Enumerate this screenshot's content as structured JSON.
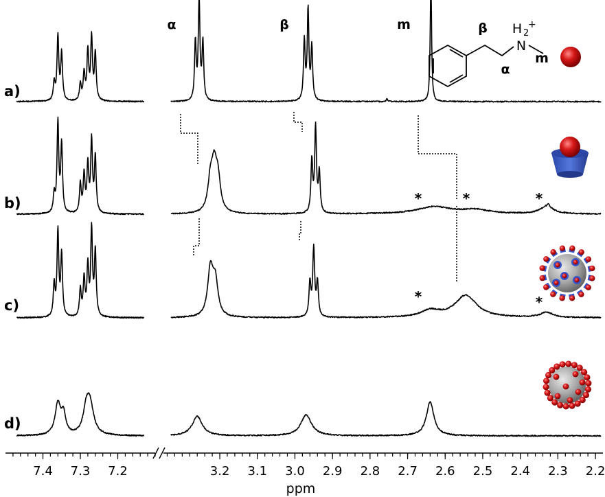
{
  "chart_data": {
    "type": "line",
    "title": "",
    "xlabel": "ppm",
    "ylabel": "",
    "x_axis_reversed": true,
    "x_axis_segments": [
      {
        "from": 7.5,
        "to": 7.1
      },
      {
        "from": 3.35,
        "to": 2.18
      }
    ],
    "x_ticks": [
      "7.4",
      "7.3",
      "7.2",
      "3.2",
      "3.1",
      "3.0",
      "2.9",
      "2.8",
      "2.7",
      "2.6",
      "2.5",
      "2.4",
      "2.3",
      "2.2"
    ],
    "peak_labels": [
      {
        "label": "α",
        "ppm": 3.25
      },
      {
        "label": "β",
        "ppm": 2.97
      },
      {
        "label": "m",
        "ppm": 2.64
      }
    ],
    "annotation_marker": "*",
    "series": [
      {
        "label": "a)",
        "peaks": [
          {
            "ppm": 7.37,
            "height": 0.28,
            "width": 0.0028
          },
          {
            "ppm": 7.36,
            "height": 0.98,
            "width": 0.0028
          },
          {
            "ppm": 7.35,
            "height": 0.72,
            "width": 0.0028
          },
          {
            "ppm": 7.3,
            "height": 0.26,
            "width": 0.0028
          },
          {
            "ppm": 7.29,
            "height": 0.42,
            "width": 0.0028
          },
          {
            "ppm": 7.28,
            "height": 0.75,
            "width": 0.0028
          },
          {
            "ppm": 7.27,
            "height": 0.95,
            "width": 0.0028
          },
          {
            "ppm": 7.26,
            "height": 0.72,
            "width": 0.0028
          },
          {
            "ppm": 3.265,
            "height": 0.9,
            "width": 0.0026
          },
          {
            "ppm": 3.255,
            "height": 1.55,
            "width": 0.0026
          },
          {
            "ppm": 3.245,
            "height": 0.9,
            "width": 0.0026
          },
          {
            "ppm": 2.975,
            "height": 0.92,
            "width": 0.0026
          },
          {
            "ppm": 2.965,
            "height": 1.4,
            "width": 0.0026
          },
          {
            "ppm": 2.955,
            "height": 0.82,
            "width": 0.0026
          },
          {
            "ppm": 2.638,
            "height": 1.85,
            "width": 0.0022
          },
          {
            "ppm": 2.755,
            "height": 0.04,
            "width": 0.002
          }
        ]
      },
      {
        "label": "b)",
        "peaks": [
          {
            "ppm": 7.37,
            "height": 0.28,
            "width": 0.0028
          },
          {
            "ppm": 7.36,
            "height": 1.38,
            "width": 0.0028
          },
          {
            "ppm": 7.35,
            "height": 1.05,
            "width": 0.0028
          },
          {
            "ppm": 7.3,
            "height": 0.45,
            "width": 0.0028
          },
          {
            "ppm": 7.29,
            "height": 0.58,
            "width": 0.0028
          },
          {
            "ppm": 7.28,
            "height": 0.72,
            "width": 0.0028
          },
          {
            "ppm": 7.27,
            "height": 1.1,
            "width": 0.0028
          },
          {
            "ppm": 7.26,
            "height": 0.85,
            "width": 0.0028
          },
          {
            "ppm": 3.225,
            "height": 0.45,
            "width": 0.008
          },
          {
            "ppm": 3.215,
            "height": 0.62,
            "width": 0.008
          },
          {
            "ppm": 3.205,
            "height": 0.48,
            "width": 0.008
          },
          {
            "ppm": 2.955,
            "height": 0.8,
            "width": 0.0028
          },
          {
            "ppm": 2.945,
            "height": 1.3,
            "width": 0.0028
          },
          {
            "ppm": 2.935,
            "height": 0.62,
            "width": 0.0028
          },
          {
            "ppm": 2.63,
            "height": 0.11,
            "width": 0.055
          },
          {
            "ppm": 2.52,
            "height": 0.06,
            "width": 0.045
          },
          {
            "ppm": 2.33,
            "height": 0.11,
            "width": 0.022
          },
          {
            "ppm": 2.325,
            "height": 0.05,
            "width": 0.004
          }
        ]
      },
      {
        "label": "c)",
        "peaks": [
          {
            "ppm": 7.37,
            "height": 0.48,
            "width": 0.0028
          },
          {
            "ppm": 7.36,
            "height": 1.3,
            "width": 0.0028
          },
          {
            "ppm": 7.35,
            "height": 0.95,
            "width": 0.0028
          },
          {
            "ppm": 7.3,
            "height": 0.42,
            "width": 0.0028
          },
          {
            "ppm": 7.29,
            "height": 0.58,
            "width": 0.0028
          },
          {
            "ppm": 7.28,
            "height": 0.75,
            "width": 0.0028
          },
          {
            "ppm": 7.27,
            "height": 1.32,
            "width": 0.0028
          },
          {
            "ppm": 7.26,
            "height": 1.0,
            "width": 0.0028
          },
          {
            "ppm": 3.225,
            "height": 0.72,
            "width": 0.0085
          },
          {
            "ppm": 3.212,
            "height": 0.52,
            "width": 0.0085
          },
          {
            "ppm": 2.96,
            "height": 0.52,
            "width": 0.003
          },
          {
            "ppm": 2.95,
            "height": 1.05,
            "width": 0.003
          },
          {
            "ppm": 2.94,
            "height": 0.52,
            "width": 0.003
          },
          {
            "ppm": 2.64,
            "height": 0.1,
            "width": 0.03
          },
          {
            "ppm": 2.545,
            "height": 0.34,
            "width": 0.035
          },
          {
            "ppm": 2.33,
            "height": 0.08,
            "width": 0.02
          }
        ]
      },
      {
        "label": "d)",
        "peaks": [
          {
            "ppm": 7.36,
            "height": 0.48,
            "width": 0.009
          },
          {
            "ppm": 7.345,
            "height": 0.3,
            "width": 0.007
          },
          {
            "ppm": 7.285,
            "height": 0.28,
            "width": 0.009
          },
          {
            "ppm": 7.275,
            "height": 0.5,
            "width": 0.012
          },
          {
            "ppm": 3.26,
            "height": 0.3,
            "width": 0.016
          },
          {
            "ppm": 2.97,
            "height": 0.32,
            "width": 0.017
          },
          {
            "ppm": 2.64,
            "height": 0.52,
            "width": 0.012
          }
        ]
      }
    ]
  },
  "structure": {
    "label_beta": "β",
    "label_alpha": "α",
    "label_m": "m",
    "label_n": "N",
    "label_h": "H",
    "label_sub": "2",
    "label_sup": "+"
  },
  "colors": {
    "guest_red": "#cc1111",
    "host_blue": "#3355cc",
    "nanoparticle_grey": "#9a9a9a"
  }
}
